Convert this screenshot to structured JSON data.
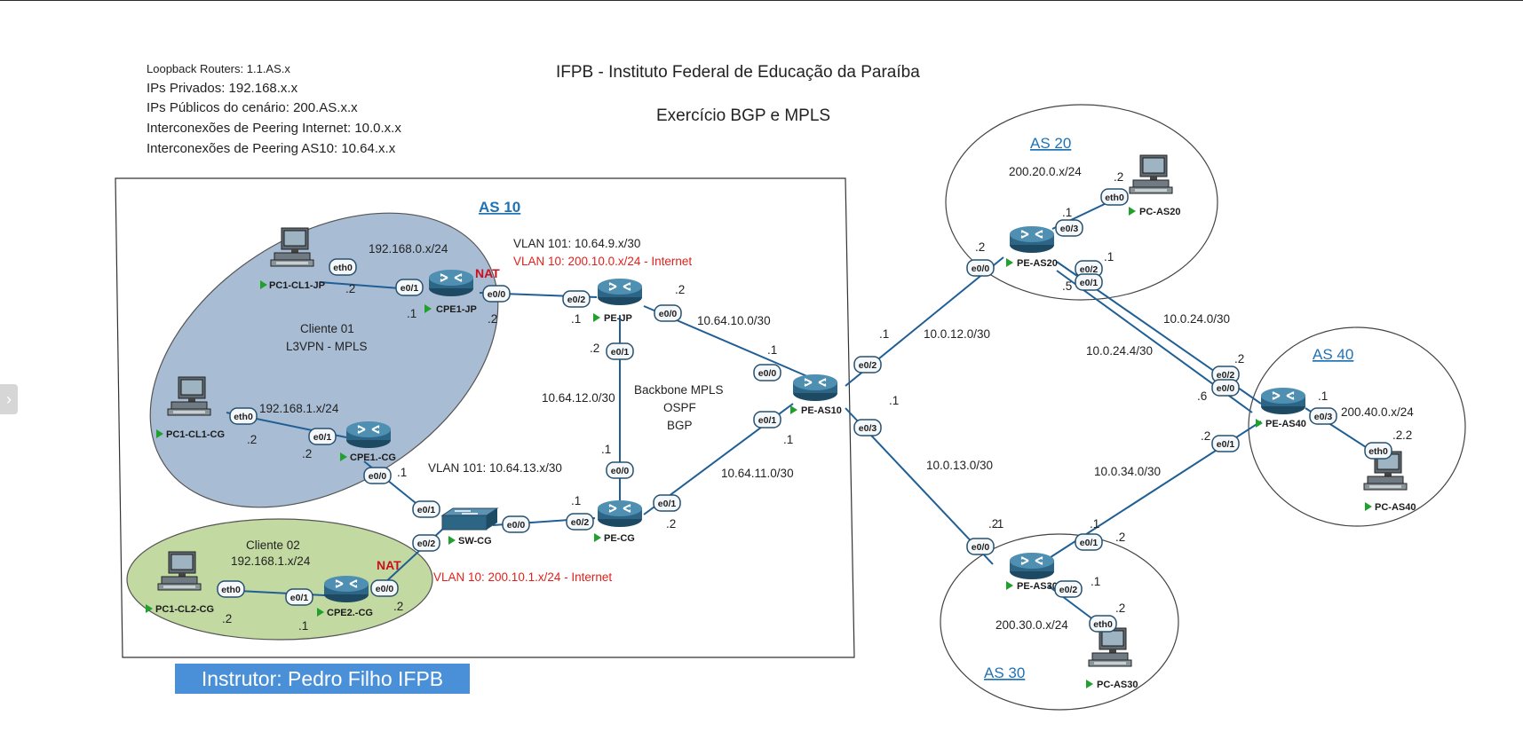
{
  "title": "IFPB - Instituto Federal de Educação da Paraíba",
  "subtitle": "Exercício BGP e MPLS",
  "legend": [
    "Loopback Routers: 1.1.AS.x",
    "IPs Privados: 192.168.x.x",
    "IPs Públicos do cenário: 200.AS.x.x",
    "Interconexões de Peering Internet: 10.0.x.x",
    "Interconexões de Peering AS10: 10.64.x.x"
  ],
  "instructor": "Instrutor: Pedro Filho IFPB",
  "colors": {
    "as_label": "#1f72b5",
    "cliente01_fill": "#a8bcd4",
    "cliente02_fill": "#c3d9a2",
    "link": "#1f5f95",
    "internet_vlan": "#e0211b",
    "instructor_bg": "#4a90d9"
  },
  "areas": {
    "as10": "AS 10",
    "as20": "AS 20",
    "as30": "AS 30",
    "as40": "AS 40"
  },
  "clients": {
    "c1_name": "Cliente 01",
    "c1_type": "L3VPN - MPLS",
    "c2_name": "Cliente 02"
  },
  "nat": "NAT",
  "devices": {
    "pc1_cl1_jp": "PC1-CL1-JP",
    "cpe1_jp": "CPE1-JP",
    "pc1_cl1_cg": "PC1-CL1-CG",
    "cpe1_cg": "CPE1.-CG",
    "pc1_cl2_cg": "PC1-CL2-CG",
    "cpe2_cg": "CPE2.-CG",
    "sw_cg": "SW-CG",
    "pe_jp": "PE-JP",
    "pe_cg": "PE-CG",
    "pe_as10": "PE-AS10",
    "pe_as20": "PE-AS20",
    "pc_as20": "PC-AS20",
    "pe_as30": "PE-AS30",
    "pc_as30": "PC-AS30",
    "pe_as40": "PE-AS40",
    "pc_as40": "PC-AS40"
  },
  "networks": {
    "lan_jp": "192.168.0.x/24",
    "lan_cg1": "192.168.1.x/24",
    "lan_cg2": "192.168.1.x/24",
    "vlan101_jp": "VLAN 101: 10.64.9.x/30",
    "vlan10_jp": "VLAN 10: 200.10.0.x/24 - Internet",
    "vlan101_cg": "VLAN 101: 10.64.13.x/30",
    "vlan10_cg": "VLAN 10: 200.10.1.x/24 - Internet",
    "n_10_64_10": "10.64.10.0/30",
    "n_10_64_12": "10.64.12.0/30",
    "n_10_64_11": "10.64.11.0/30",
    "backbone1": "Backbone MPLS",
    "backbone2": "OSPF",
    "backbone3": "BGP",
    "n_10_0_12": "10.0.12.0/30",
    "n_10_0_13": "10.0.13.0/30",
    "n_10_0_24_0": "10.0.24.0/30",
    "n_10_0_24_4": "10.0.24.4/30",
    "n_10_0_34": "10.0.34.0/30",
    "as20_net": "200.20.0.x/24",
    "as30_net": "200.30.0.x/24",
    "as40_net": "200.40.0.x/24"
  },
  "interfaces": {
    "pc1jp_eth0": "eth0",
    "cpe1jp_e01": "e0/1",
    "cpe1jp_e00": "e0/0",
    "pejp_e02": "e0/2",
    "pejp_e00": "e0/0",
    "pejp_e01": "e0/1",
    "pc1cg_eth0": "eth0",
    "cpe1cg_e01": "e0/1",
    "cpe1cg_e00": "e0/0",
    "swcg_e01": "e0/1",
    "swcg_e02": "e0/2",
    "swcg_e00": "e0/0",
    "pc2cg_eth0": "eth0",
    "cpe2cg_e01": "e0/1",
    "cpe2cg_e00": "e0/0",
    "pecg_e02": "e0/2",
    "pecg_e00": "e0/0",
    "pecg_e01": "e0/1",
    "peas10_e00": "e0/0",
    "peas10_e01": "e0/1",
    "peas10_e02": "e0/2",
    "peas10_e03": "e0/3",
    "peas20_e00": "e0/0",
    "peas20_e03": "e0/3",
    "peas20_e02": "e0/2",
    "peas20_e01": "e0/1",
    "pcas20_eth0": "eth0",
    "peas40_e02": "e0/2",
    "peas40_e00": "e0/0",
    "peas40_e01": "e0/1",
    "peas40_e03": "e0/3",
    "pcas40_eth0": "eth0",
    "peas30_e00": "e0/0",
    "peas30_e01": "e0/1",
    "peas30_e02": "e0/2",
    "pcas30_eth0": "eth0"
  },
  "hosts": {
    "h1": ".2",
    "h2": ".1",
    "h3": ".2",
    "h4": ".1",
    "h5": ".2",
    "h6": ".2",
    "h7": ".1",
    "h8": ".1",
    "h9": ".2",
    "h10": ".2",
    "h11": ".1",
    "h12": ".1",
    "h13": ".2",
    "h14": ".2",
    "h15": ".1",
    "h16": ".1",
    "h17": ".2",
    "h18": ".1",
    "h19": ".1",
    "h20": ".2",
    "h21": ".1",
    "h22": ".2",
    "h23": ".1",
    "h24": ".5",
    "h25": ".2",
    "h26": ".6",
    "h27": ".1",
    "h28": ".2",
    "h29": ".2",
    "h30": ".2",
    "h31": ".1",
    "h32": ".1",
    "h33": ".2",
    "h34": ".2",
    "h35": ".1",
    "h36": ".2"
  }
}
